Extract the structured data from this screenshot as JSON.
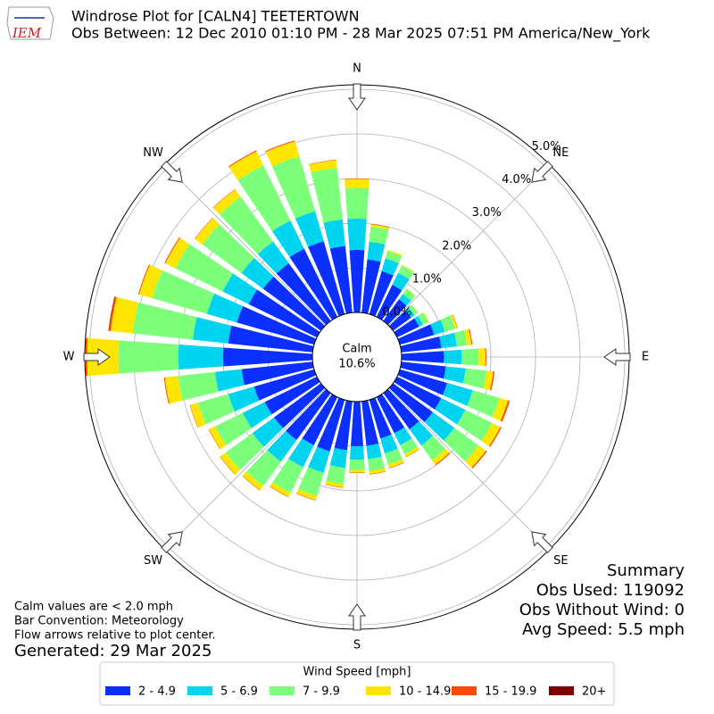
{
  "logo_text": "IEM",
  "chart_data": {
    "type": "windrose",
    "title": "Windrose Plot for [CALN4] TEETERTOWN",
    "subtitle": "Obs Between: 12 Dec 2010 01:10 PM - 28 Mar 2025 07:51 PM America/New_York",
    "x": [
      0,
      10,
      20,
      30,
      40,
      50,
      60,
      70,
      80,
      90,
      100,
      110,
      120,
      130,
      140,
      150,
      160,
      170,
      180,
      190,
      200,
      210,
      220,
      230,
      240,
      250,
      260,
      270,
      280,
      290,
      300,
      310,
      320,
      330,
      340,
      350
    ],
    "xticks": [
      {
        "value": 0,
        "label": "N"
      },
      {
        "value": 45,
        "label": "NE"
      },
      {
        "value": 90,
        "label": "E"
      },
      {
        "value": 135,
        "label": "SE"
      },
      {
        "value": 180,
        "label": "S"
      },
      {
        "value": 225,
        "label": "SW"
      },
      {
        "value": 270,
        "label": "W"
      },
      {
        "value": 315,
        "label": "NW"
      }
    ],
    "ylim": [
      0,
      5.1
    ],
    "yticks": [
      {
        "value": 0,
        "label": "0.0%"
      },
      {
        "value": 1,
        "label": "1.0%"
      },
      {
        "value": 2,
        "label": "2.0%"
      },
      {
        "value": 3,
        "label": "3.0%"
      },
      {
        "value": 4,
        "label": "4.0%"
      },
      {
        "value": 5,
        "label": "5.0%"
      }
    ],
    "grid": true,
    "calm_label": "Calm",
    "calm_value": 10.6,
    "calm_value_label": "10.6%",
    "legend_title": "Wind Speed [mph]",
    "legend_position": "bottom",
    "series": [
      {
        "name": "2 - 4.9",
        "color": "#0a2fff",
        "values": [
          1.4,
          1.2,
          1.0,
          0.8,
          0.6,
          0.5,
          0.55,
          0.8,
          0.9,
          0.95,
          1.0,
          1.1,
          1.1,
          1.1,
          1.0,
          0.9,
          0.9,
          1.0,
          1.0,
          1.1,
          1.2,
          1.2,
          1.3,
          1.3,
          1.3,
          1.4,
          1.6,
          2.0,
          1.9,
          1.8,
          1.7,
          1.6,
          1.6,
          1.7,
          1.7,
          1.5
        ]
      },
      {
        "name": "5 - 6.9",
        "color": "#00d4f0",
        "values": [
          0.7,
          0.4,
          0.3,
          0.3,
          0.15,
          0.1,
          0.1,
          0.25,
          0.35,
          0.4,
          0.45,
          0.6,
          0.6,
          0.6,
          0.45,
          0.3,
          0.35,
          0.3,
          0.3,
          0.4,
          0.5,
          0.55,
          0.6,
          0.6,
          0.55,
          0.6,
          0.6,
          1.0,
          0.8,
          0.7,
          0.65,
          0.6,
          0.6,
          0.7,
          0.7,
          0.6
        ]
      },
      {
        "name": "7 - 9.9",
        "color": "#7cff7a",
        "values": [
          0.69,
          0.34,
          0.17,
          0.18,
          0.14,
          0.09,
          0.13,
          0.24,
          0.23,
          0.38,
          0.47,
          0.62,
          0.67,
          0.67,
          0.41,
          0.23,
          0.26,
          0.27,
          0.23,
          0.36,
          0.54,
          0.64,
          0.67,
          0.74,
          0.69,
          0.71,
          0.83,
          1.35,
          1.35,
          1.28,
          1.18,
          1.09,
          1.24,
          1.38,
          1.28,
          1.16
        ]
      },
      {
        "name": "10 - 14.9",
        "color": "#ffe600",
        "values": [
          0.2,
          0.05,
          0.03,
          0.02,
          0.01,
          0.01,
          0.02,
          0.05,
          0.1,
          0.15,
          0.15,
          0.2,
          0.2,
          0.2,
          0.12,
          0.06,
          0.08,
          0.07,
          0.06,
          0.08,
          0.1,
          0.1,
          0.12,
          0.15,
          0.15,
          0.18,
          0.3,
          0.7,
          0.5,
          0.3,
          0.25,
          0.2,
          0.2,
          0.35,
          0.35,
          0.18
        ]
      },
      {
        "name": "15 - 19.9",
        "color": "#ff4a00",
        "values": [
          0.01,
          0.01,
          0,
          0,
          0,
          0,
          0,
          0.01,
          0.02,
          0.02,
          0.03,
          0.04,
          0.03,
          0.03,
          0.02,
          0.01,
          0.01,
          0.01,
          0.01,
          0.01,
          0.01,
          0.01,
          0.01,
          0.01,
          0.01,
          0.01,
          0.02,
          0.04,
          0.04,
          0.02,
          0.02,
          0.01,
          0.01,
          0.02,
          0.02,
          0.01
        ]
      },
      {
        "name": "20+",
        "color": "#7f0000",
        "values": [
          0,
          0,
          0,
          0,
          0,
          0,
          0,
          0,
          0,
          0,
          0,
          0,
          0,
          0,
          0,
          0,
          0,
          0,
          0,
          0,
          0,
          0,
          0,
          0,
          0,
          0,
          0,
          0.01,
          0.01,
          0,
          0,
          0,
          0,
          0,
          0,
          0
        ]
      }
    ],
    "notes": [
      "Calm values are < 2.0 mph",
      "Bar Convention: Meteorology",
      "Flow arrows relative to plot center."
    ],
    "generated": "Generated: 29 Mar 2025",
    "summary": [
      "Summary",
      "Obs Used: 119092",
      "Obs Without Wind: 0",
      "Avg Speed: 5.5 mph"
    ]
  }
}
